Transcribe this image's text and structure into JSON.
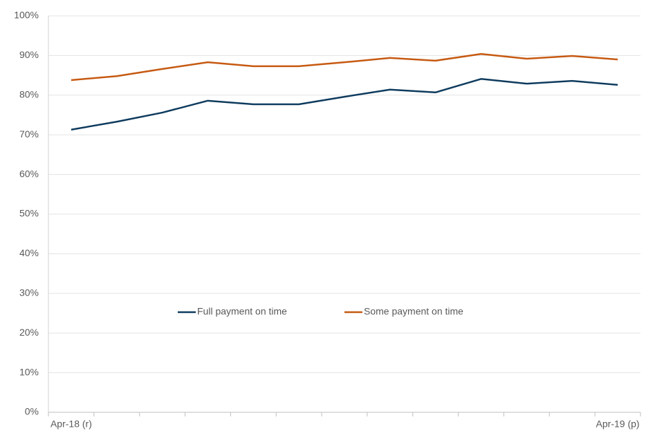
{
  "chart_data": {
    "type": "line",
    "categories": [
      "Apr-18 (r)",
      null,
      null,
      null,
      null,
      null,
      null,
      null,
      null,
      null,
      null,
      null,
      "Apr-19 (p)"
    ],
    "series": [
      {
        "name": "Full payment on time",
        "color": "#0e3b5e",
        "values": [
          71.3,
          73.3,
          75.6,
          78.6,
          77.7,
          77.7,
          79.6,
          81.4,
          80.7,
          84.1,
          82.9,
          83.6,
          82.6
        ]
      },
      {
        "name": "Some payment on time",
        "color": "#c65911",
        "values": [
          83.8,
          84.8,
          86.6,
          88.3,
          87.3,
          87.3,
          88.3,
          89.4,
          88.7,
          90.4,
          89.2,
          89.9,
          89.0
        ]
      }
    ],
    "ylim": [
      0,
      100
    ],
    "yticks": [
      {
        "value": 0,
        "label": "0%"
      },
      {
        "value": 10,
        "label": "10%"
      },
      {
        "value": 20,
        "label": "20%"
      },
      {
        "value": 30,
        "label": "30%"
      },
      {
        "value": 40,
        "label": "40%"
      },
      {
        "value": 50,
        "label": "50%"
      },
      {
        "value": 60,
        "label": "60%"
      },
      {
        "value": 70,
        "label": "70%"
      },
      {
        "value": 80,
        "label": "80%"
      },
      {
        "value": 90,
        "label": "90%"
      },
      {
        "value": 100,
        "label": "100%"
      }
    ],
    "grid": true
  }
}
